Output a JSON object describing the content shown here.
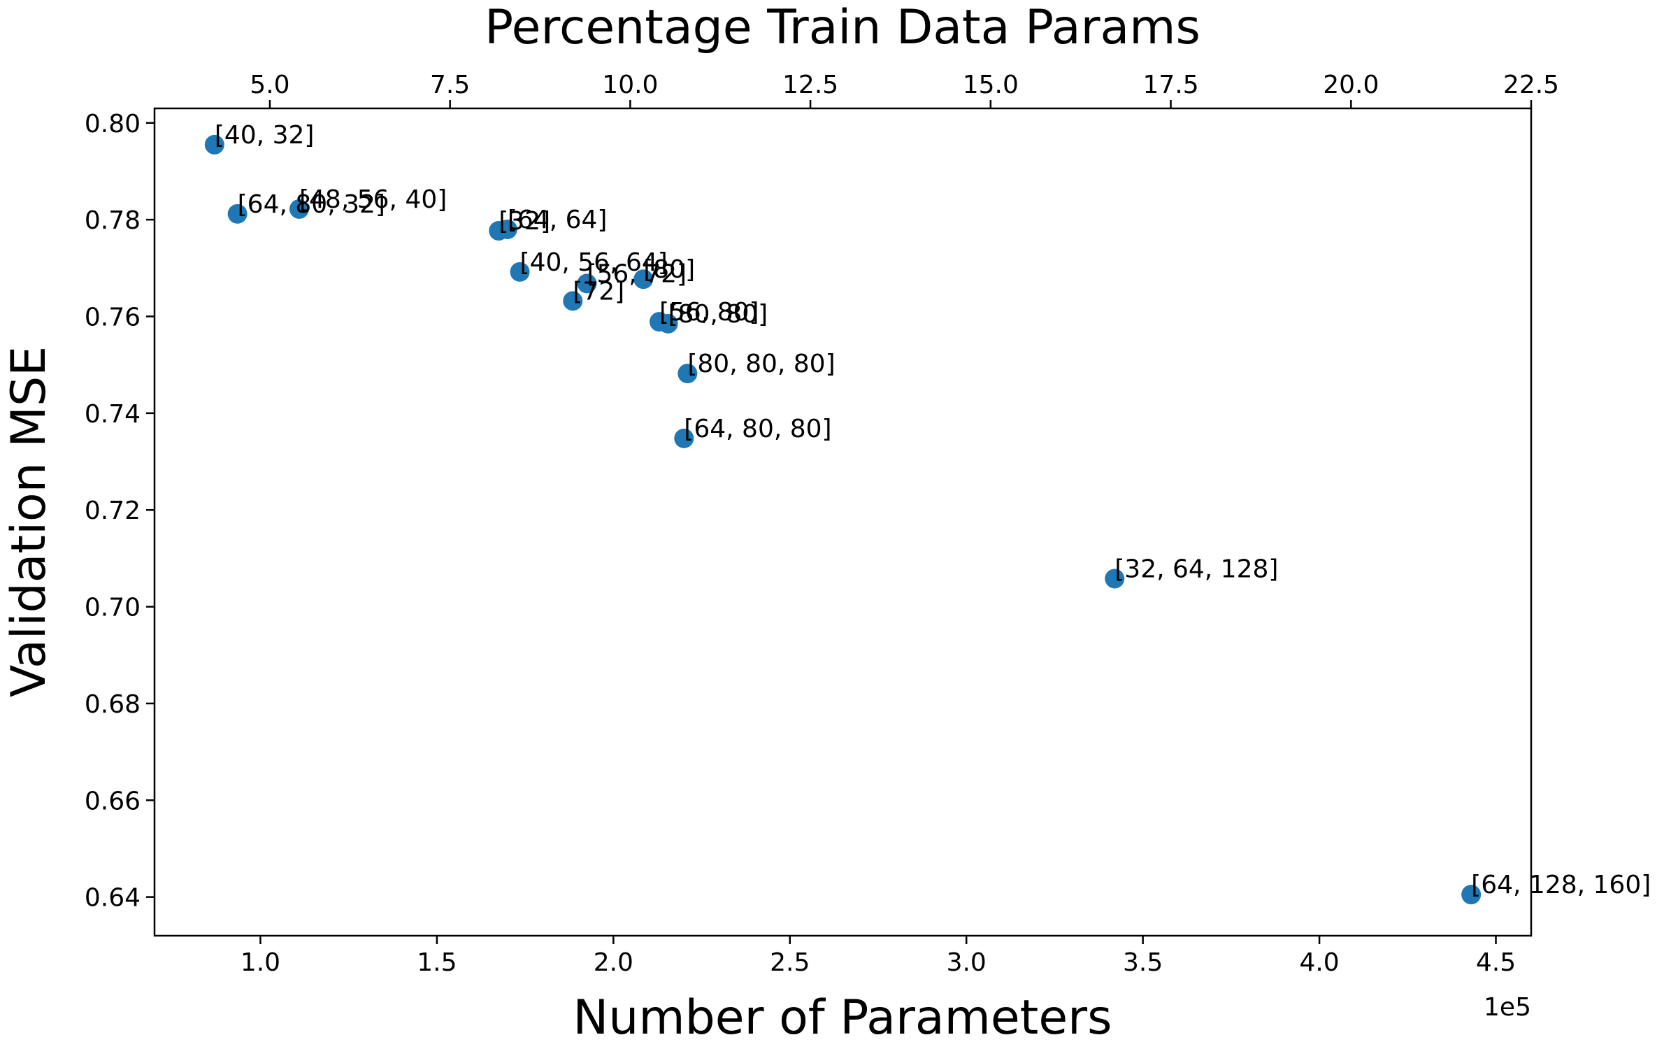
{
  "chart_data": {
    "type": "scatter",
    "title": "",
    "top_xlabel": "Percentage Train Data Params",
    "xlabel": "Number of Parameters",
    "ylabel": "Validation MSE",
    "x_offset_label": "1e5",
    "xlim": [
      0.7,
      4.6
    ],
    "ylim": [
      0.632,
      0.803
    ],
    "top_xlim": [
      3.4,
      22.5
    ],
    "x_ticks": [
      1.0,
      1.5,
      2.0,
      2.5,
      3.0,
      3.5,
      4.0,
      4.5
    ],
    "x_tick_labels": [
      "1.0",
      "1.5",
      "2.0",
      "2.5",
      "3.0",
      "3.5",
      "4.0",
      "4.5"
    ],
    "top_x_ticks": [
      5.0,
      7.5,
      10.0,
      12.5,
      15.0,
      17.5,
      20.0,
      22.5
    ],
    "top_x_tick_labels": [
      "5.0",
      "7.5",
      "10.0",
      "12.5",
      "15.0",
      "17.5",
      "20.0",
      "22.5"
    ],
    "y_ticks": [
      0.64,
      0.66,
      0.68,
      0.7,
      0.72,
      0.74,
      0.76,
      0.78,
      0.8
    ],
    "y_tick_labels": [
      "0.64",
      "0.66",
      "0.68",
      "0.70",
      "0.72",
      "0.74",
      "0.76",
      "0.78",
      "0.80"
    ],
    "grid": false,
    "marker_color": "#1f77b4",
    "points": [
      {
        "label": "[40, 32]",
        "x": 0.87,
        "y": 0.7955
      },
      {
        "label": "[64, 80, 32]",
        "x": 0.935,
        "y": 0.7812
      },
      {
        "label": "[48, 56, 40]",
        "x": 1.11,
        "y": 0.7822
      },
      {
        "label": "[32]",
        "x": 1.675,
        "y": 0.7777
      },
      {
        "label": "[64, 64]",
        "x": 1.7,
        "y": 0.778
      },
      {
        "label": "[40, 56, 64]",
        "x": 1.735,
        "y": 0.7692
      },
      {
        "label": "[72]",
        "x": 1.885,
        "y": 0.7632
      },
      {
        "label": "[56, 72]",
        "x": 1.925,
        "y": 0.7668
      },
      {
        "label": "[80]",
        "x": 2.085,
        "y": 0.7677
      },
      {
        "label": "[56, 80]",
        "x": 2.13,
        "y": 0.7589
      },
      {
        "label": "[80, 80]",
        "x": 2.155,
        "y": 0.7585
      },
      {
        "label": "[80, 80, 80]",
        "x": 2.21,
        "y": 0.7482
      },
      {
        "label": "[64, 80, 80]",
        "x": 2.2,
        "y": 0.7348
      },
      {
        "label": "[32, 64, 128]",
        "x": 3.42,
        "y": 0.7058
      },
      {
        "label": "[64, 128, 160]",
        "x": 4.43,
        "y": 0.6405
      }
    ]
  }
}
